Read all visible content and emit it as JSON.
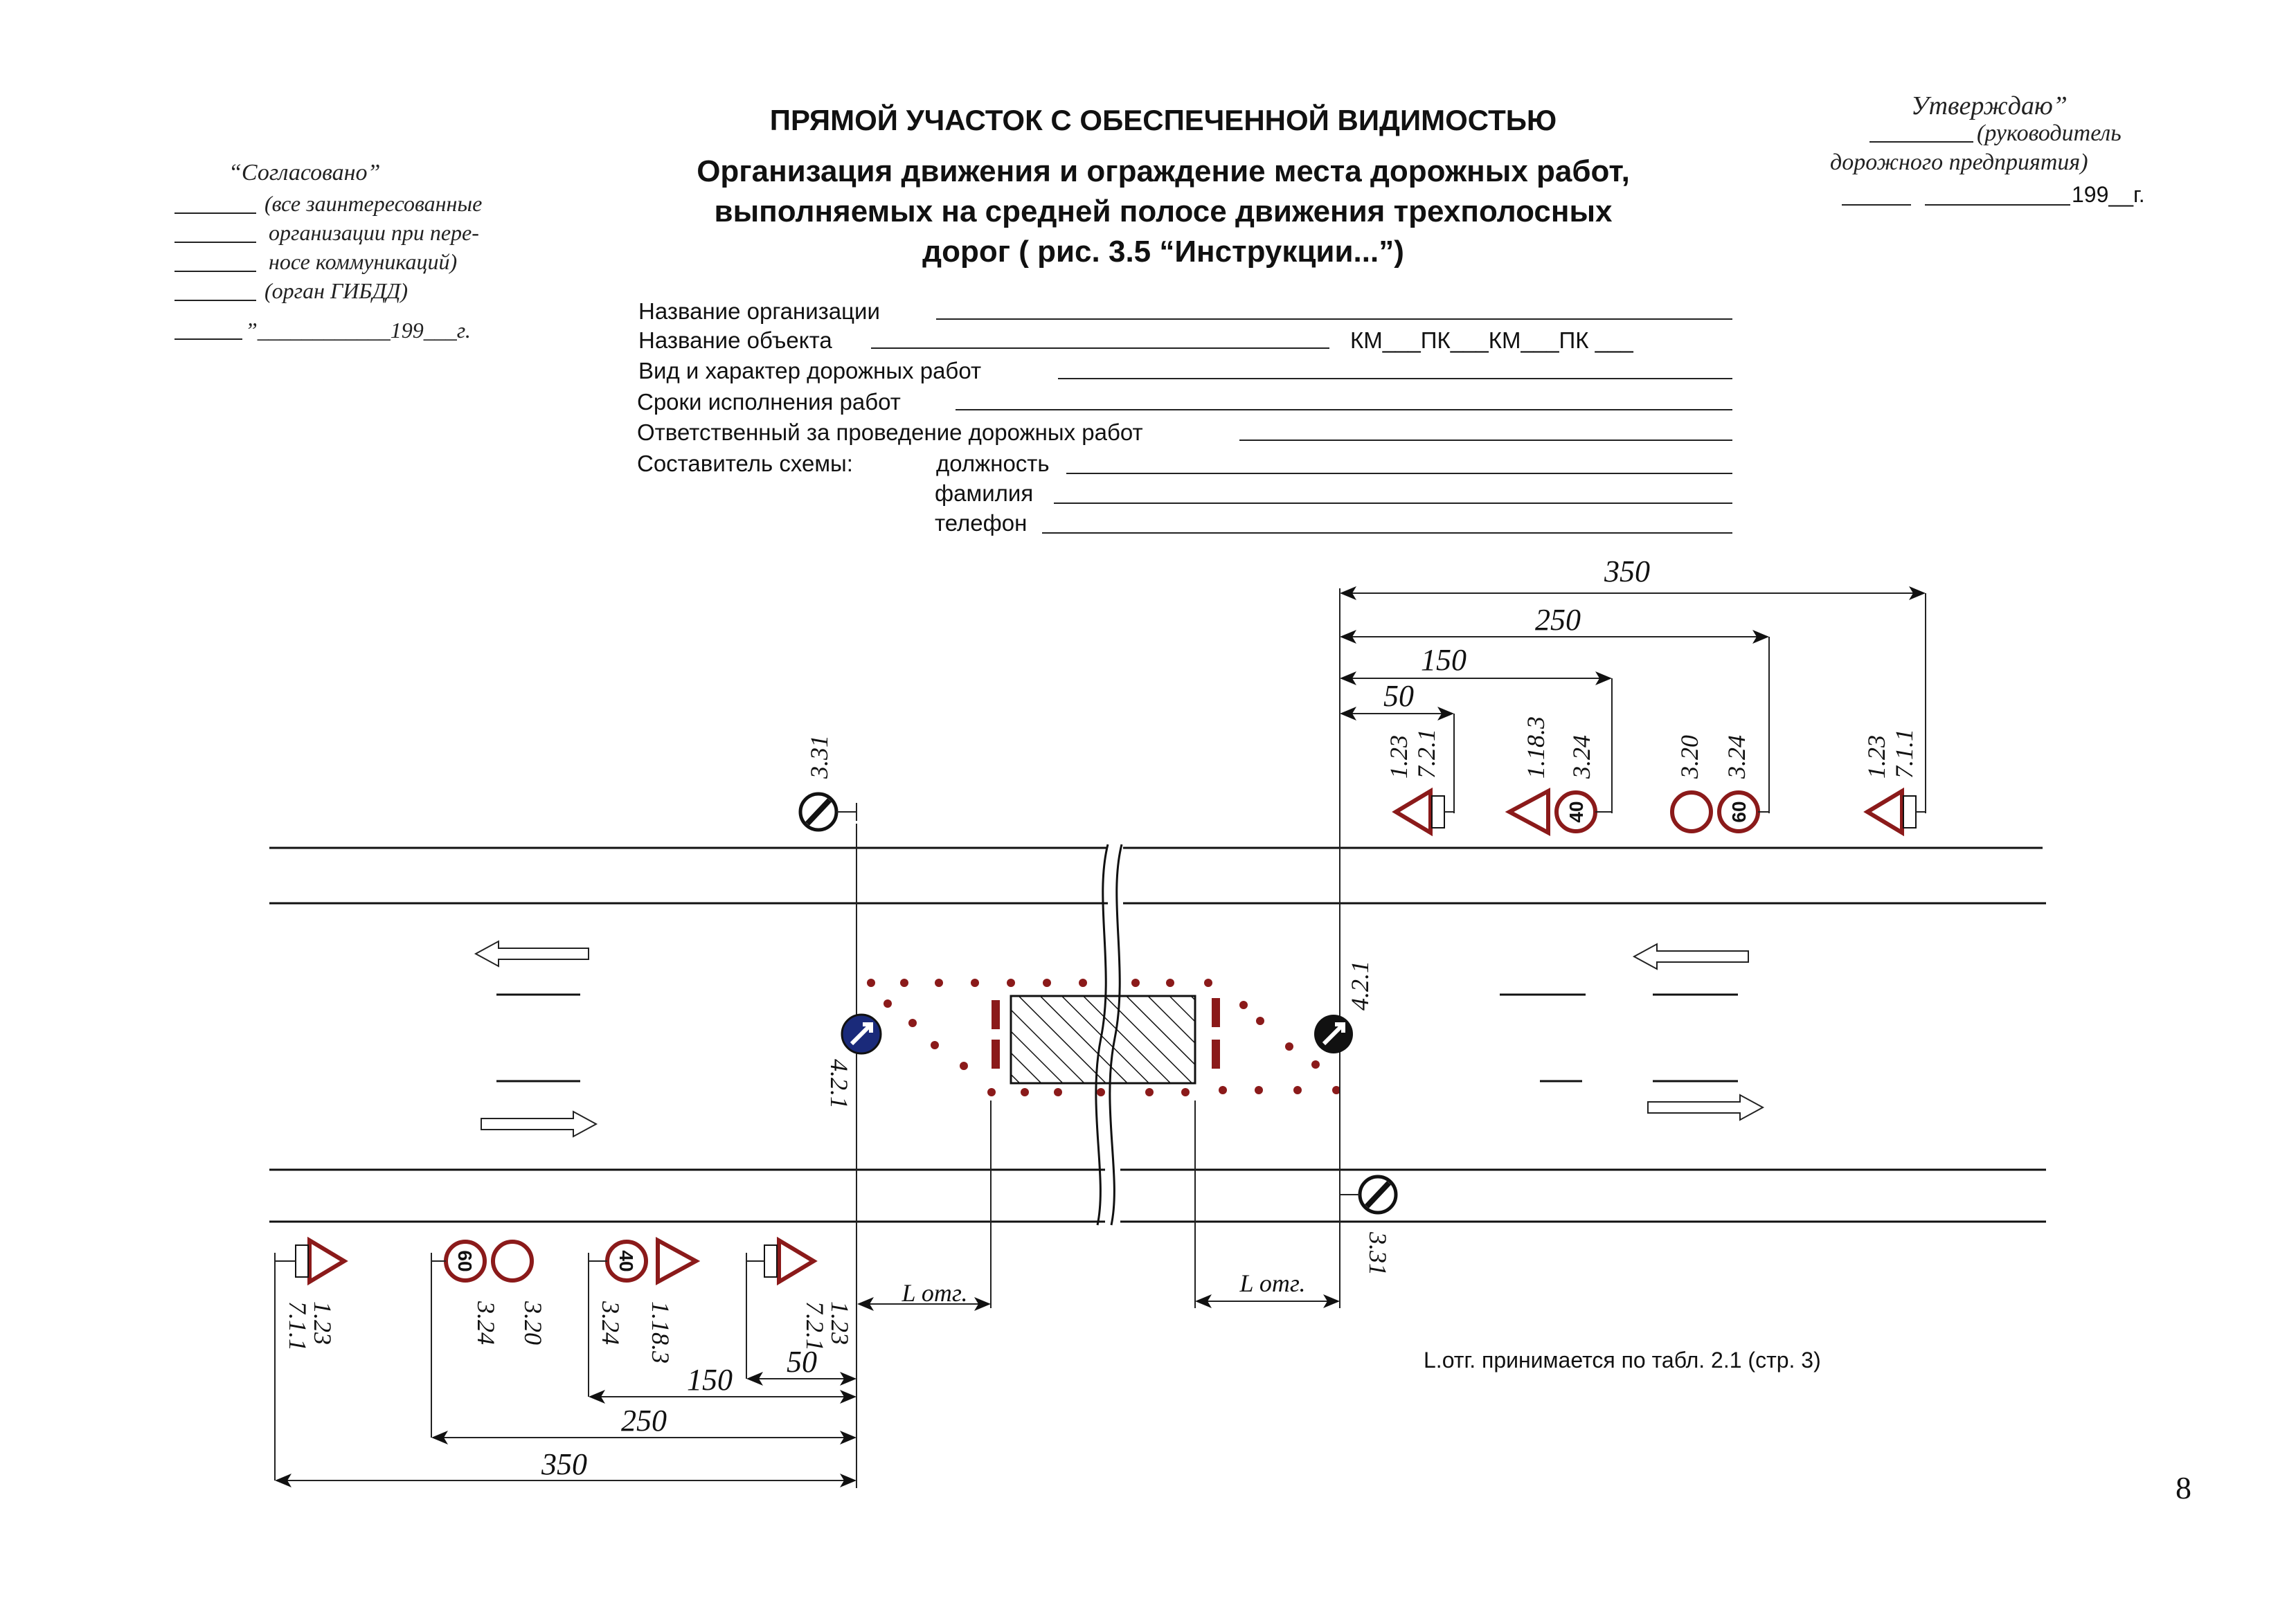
{
  "header": {
    "title": "ПРЯМОЙ УЧАСТОК С ОБЕСПЕЧЕННОЙ ВИДИМОСТЬЮ",
    "subtitle_lines": [
      "Организация движения и ограждение места дорожных работ,",
      "выполняемых на средней полосе движения трехполосных",
      "дорог ( рис. 3.5 “Инструкции...”)"
    ]
  },
  "approval_left": {
    "title": "“Согласовано”",
    "lines": [
      "(все заинтересованные",
      "организации при пере-",
      "носе коммуникаций)",
      "(орган ГИБДД)"
    ],
    "date": "”____________199___г."
  },
  "approval_right": {
    "title": "Утверждаю”",
    "line1": "(руководитель",
    "line2": "дорожного предприятия)",
    "date": "199__г."
  },
  "form": {
    "org": "Название организации",
    "object": "Название объекта",
    "object_suffix": "КМ___ПК___КМ___ПК ___",
    "kind": "Вид и характер дорожных работ",
    "terms": "Сроки исполнения работ",
    "responsible": "Ответственный за проведение дорожных работ",
    "author": "Составитель схемы:",
    "position": "должность",
    "surname": "фамилия",
    "phone": "телефон"
  },
  "diagram": {
    "top_dims": [
      "50",
      "150",
      "250",
      "350"
    ],
    "bottom_dims": [
      "50",
      "150",
      "250",
      "350"
    ],
    "top_signs": [
      {
        "codes": [
          "1.23",
          "7.2.1"
        ]
      },
      {
        "codes": [
          "1.18.3",
          "3.24"
        ],
        "speed": "40"
      },
      {
        "codes": [
          "3.20",
          "3.24"
        ],
        "speed": "60"
      },
      {
        "codes": [
          "1.23",
          "7.1.1"
        ]
      }
    ],
    "bottom_signs": [
      {
        "codes": [
          "1.23",
          "7.1.1"
        ]
      },
      {
        "codes": [
          "3.24",
          "3.20"
        ],
        "speed": "60"
      },
      {
        "codes": [
          "3.24",
          "1.18.3"
        ],
        "speed": "40"
      },
      {
        "codes": [
          "7.2.1",
          "1.23"
        ]
      }
    ],
    "sign_331": "3.31",
    "sign_421": "4.2.1",
    "l_otg": "L отг.",
    "note": "L.отг. принимается по табл. 2.1 (стр. 3)",
    "colors": {
      "sign_red": "#8b1a1a",
      "sign_blue": "#1a2a7a"
    }
  },
  "page_number": "8"
}
